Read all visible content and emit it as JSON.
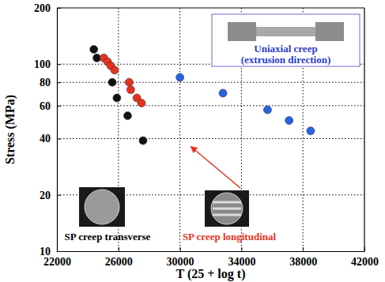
{
  "chart_data": {
    "type": "scatter",
    "x_label": "T (25 + log t)",
    "y_label": "Stress (MPa)",
    "log": "y",
    "grid": true,
    "xlim": [
      22000,
      42000
    ],
    "xticks": [
      22000,
      26000,
      30000,
      34000,
      38000,
      42000
    ],
    "ylim": [
      10,
      200
    ],
    "yticks": [
      10,
      20,
      40,
      60,
      80,
      100,
      200
    ],
    "series": [
      {
        "color": "#111111",
        "marker": "circle",
        "x": [
          24400,
          24600,
          25600,
          25900,
          26600,
          27600
        ],
        "values": [
          120,
          108,
          80,
          66,
          53,
          39
        ]
      },
      {
        "color": "#e8321e",
        "marker": "circle",
        "x": [
          25050,
          25300,
          25500,
          25750,
          26700,
          26800,
          27200,
          27500
        ],
        "values": [
          108,
          103,
          98,
          93,
          80,
          73,
          66,
          62
        ]
      },
      {
        "color": "#2a62e6",
        "marker": "circle",
        "x": [
          30000,
          32800,
          35700,
          37100,
          38500
        ],
        "values": [
          85,
          70,
          57,
          50,
          44
        ]
      }
    ],
    "annotations": [
      {
        "text": "SP creep transverse",
        "color": "#000000"
      },
      {
        "text": "SP creep longitudinal",
        "color": "#e8321e"
      },
      {
        "lines": [
          "Uniaxial creep",
          "(extrusion direction)"
        ],
        "color": "#2a3cc8"
      }
    ]
  }
}
